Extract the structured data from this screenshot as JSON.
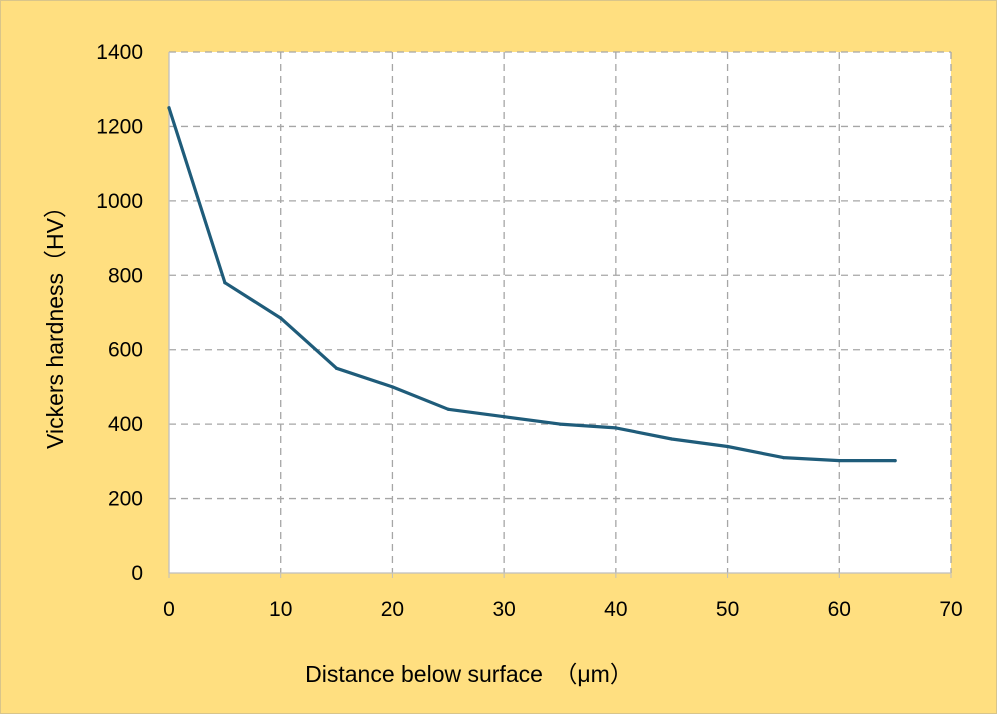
{
  "chart_data": {
    "type": "line",
    "title": "",
    "xlabel": "Distance below surface　（μm）",
    "ylabel": "Vickers hardness（HV）",
    "xlim": [
      0,
      70
    ],
    "ylim": [
      0,
      1400
    ],
    "xticks": [
      0,
      10,
      20,
      30,
      40,
      50,
      60,
      70
    ],
    "yticks": [
      0,
      200,
      400,
      600,
      800,
      1000,
      1200,
      1400
    ],
    "grid": true,
    "grid_style": "dashed",
    "legend": "none",
    "series": [
      {
        "name": "Vickers hardness",
        "color": "#1F5C7A",
        "x": [
          0,
          5,
          10,
          15,
          20,
          25,
          30,
          35,
          40,
          45,
          50,
          55,
          60,
          65
        ],
        "y": [
          1250,
          780,
          685,
          550,
          500,
          440,
          420,
          400,
          390,
          360,
          340,
          310,
          302,
          302
        ]
      }
    ]
  },
  "colors": {
    "background": "#FFDF80",
    "plot_area": "#FFFFFF",
    "grid": "#A6A6A6",
    "line": "#1F5C7A"
  }
}
